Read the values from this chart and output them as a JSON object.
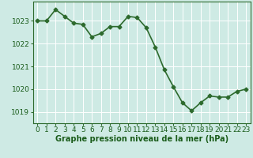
{
  "x": [
    0,
    1,
    2,
    3,
    4,
    5,
    6,
    7,
    8,
    9,
    10,
    11,
    12,
    13,
    14,
    15,
    16,
    17,
    18,
    19,
    20,
    21,
    22,
    23
  ],
  "y": [
    1023.0,
    1023.0,
    1023.5,
    1023.2,
    1022.9,
    1022.85,
    1022.3,
    1022.45,
    1022.75,
    1022.75,
    1023.2,
    1023.15,
    1022.7,
    1021.85,
    1020.85,
    1020.1,
    1019.4,
    1019.05,
    1019.4,
    1019.7,
    1019.65,
    1019.65,
    1019.9,
    1020.0
  ],
  "line_color": "#2d6a2d",
  "marker": "D",
  "marker_size": 2.5,
  "background_color": "#ceeae4",
  "grid_color": "#ffffff",
  "xlabel": "Graphe pression niveau de la mer (hPa)",
  "xlabel_fontsize": 7,
  "ylabel_ticks": [
    1019,
    1020,
    1021,
    1022,
    1023
  ],
  "xlim": [
    -0.5,
    23.5
  ],
  "ylim": [
    1018.5,
    1023.85
  ],
  "xtick_labels": [
    "0",
    "1",
    "2",
    "3",
    "4",
    "5",
    "6",
    "7",
    "8",
    "9",
    "10",
    "11",
    "12",
    "13",
    "14",
    "15",
    "16",
    "17",
    "18",
    "19",
    "20",
    "21",
    "22",
    "23"
  ],
  "title_color": "#1a5c1a",
  "tick_fontsize": 6.5,
  "line_width": 1.2
}
